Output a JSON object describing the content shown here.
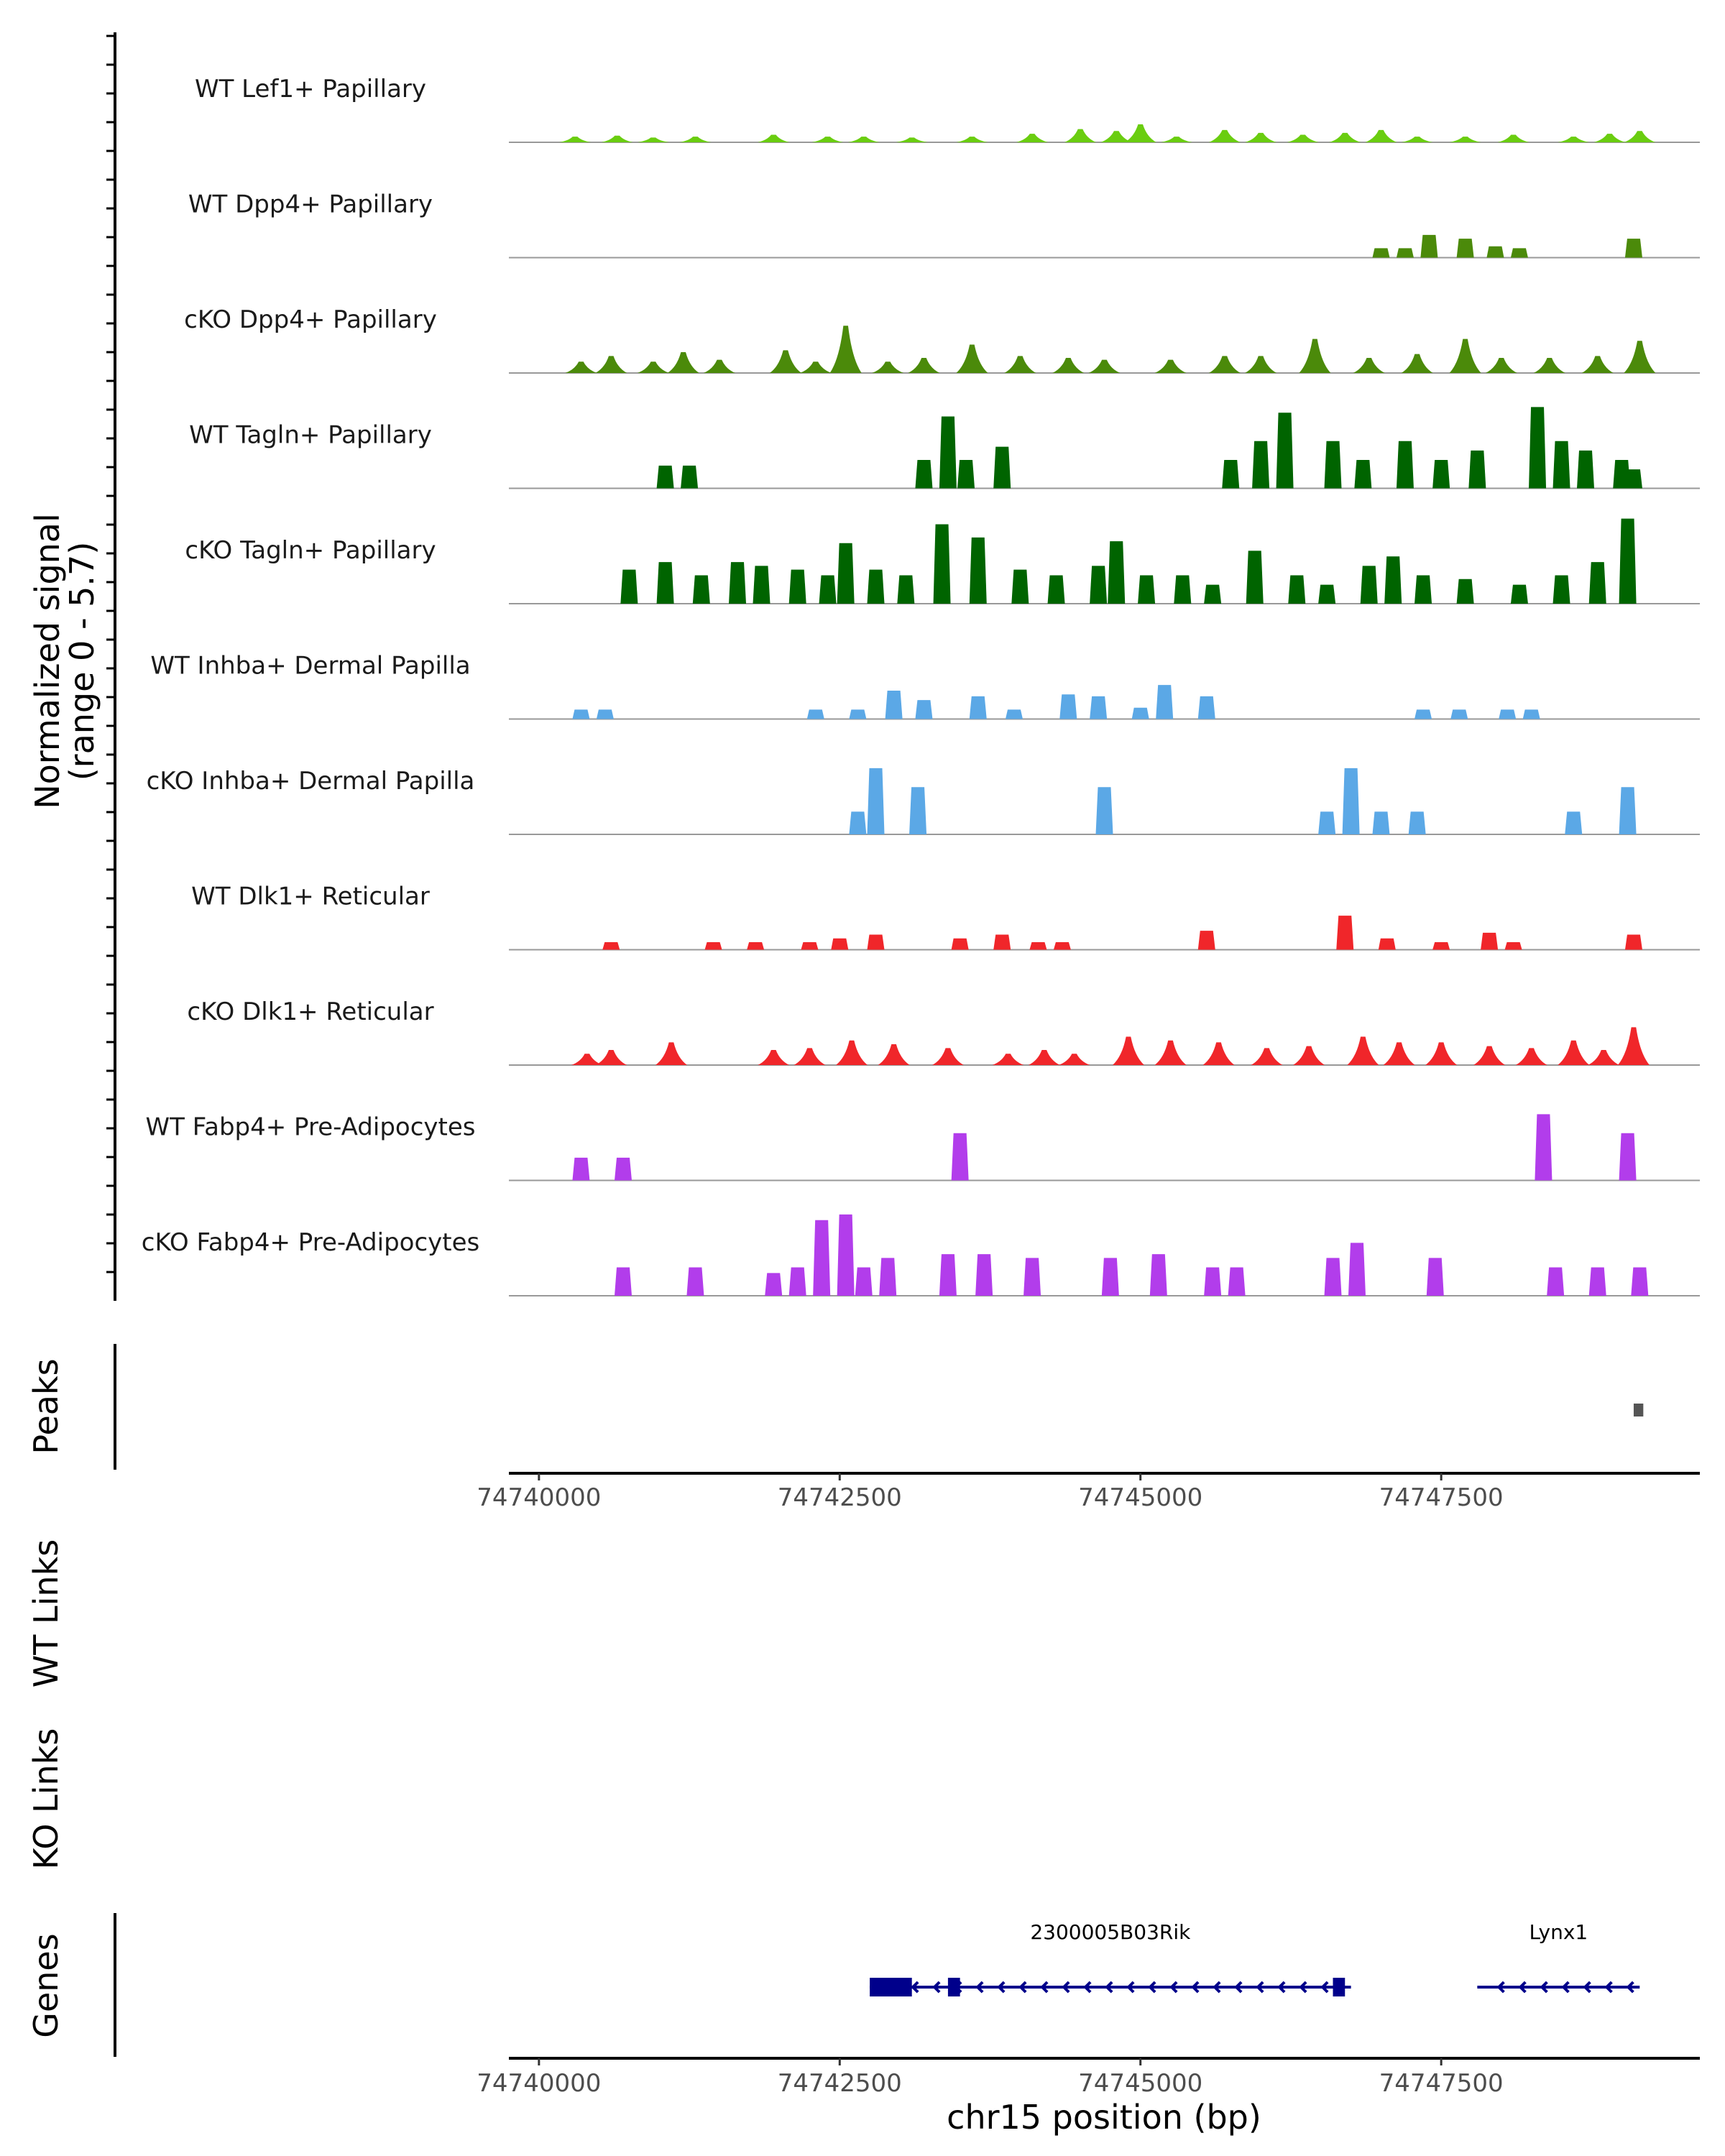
{
  "chart_data": {
    "type": "area",
    "title": "",
    "xlabel": "chr15 position (bp)",
    "ylabel": "Normalized signal",
    "ylabel_range": "(range 0 - 5.7)",
    "xlim": [
      74739750,
      74749650
    ],
    "ylim": [
      0,
      5.7
    ],
    "x_ticks": [
      74740000,
      74742500,
      74745000,
      74747500
    ],
    "x_tick_labels": [
      "74740000",
      "74742500",
      "74745000",
      "74747500"
    ],
    "tracks": [
      {
        "name": "WT Lef1+ Papillary",
        "color": "#6ACD10",
        "kind": "smooth",
        "points": [
          [
            74740300,
            0.3
          ],
          [
            74740650,
            0.35
          ],
          [
            74740950,
            0.25
          ],
          [
            74741300,
            0.3
          ],
          [
            74741950,
            0.4
          ],
          [
            74742400,
            0.3
          ],
          [
            74742700,
            0.3
          ],
          [
            74743100,
            0.25
          ],
          [
            74743600,
            0.3
          ],
          [
            74744100,
            0.45
          ],
          [
            74744500,
            0.7
          ],
          [
            74744800,
            0.6
          ],
          [
            74745000,
            0.95
          ],
          [
            74745300,
            0.3
          ],
          [
            74745700,
            0.65
          ],
          [
            74746000,
            0.5
          ],
          [
            74746350,
            0.4
          ],
          [
            74746700,
            0.5
          ],
          [
            74747000,
            0.65
          ],
          [
            74747300,
            0.3
          ],
          [
            74747700,
            0.3
          ],
          [
            74748100,
            0.4
          ],
          [
            74748600,
            0.3
          ],
          [
            74748900,
            0.45
          ],
          [
            74749150,
            0.6
          ]
        ]
      },
      {
        "name": "WT Dpp4+ Papillary",
        "color": "#4B8A0A",
        "kind": "blocky",
        "points": [
          [
            74747000,
            0.5
          ],
          [
            74747200,
            0.5
          ],
          [
            74747400,
            1.2
          ],
          [
            74747700,
            1.0
          ],
          [
            74747950,
            0.6
          ],
          [
            74748150,
            0.5
          ],
          [
            74749100,
            1.0
          ]
        ]
      },
      {
        "name": "cKO Dpp4+ Papillary",
        "color": "#4B8A0A",
        "kind": "smooth",
        "points": [
          [
            74740350,
            0.6
          ],
          [
            74740600,
            0.9
          ],
          [
            74740950,
            0.6
          ],
          [
            74741200,
            1.1
          ],
          [
            74741500,
            0.7
          ],
          [
            74742050,
            1.2
          ],
          [
            74742300,
            0.6
          ],
          [
            74742550,
            2.5
          ],
          [
            74742900,
            0.6
          ],
          [
            74743200,
            0.8
          ],
          [
            74743600,
            1.5
          ],
          [
            74744000,
            0.9
          ],
          [
            74744400,
            0.8
          ],
          [
            74744700,
            0.7
          ],
          [
            74745250,
            0.7
          ],
          [
            74745700,
            0.9
          ],
          [
            74746000,
            0.9
          ],
          [
            74746450,
            1.8
          ],
          [
            74746900,
            0.8
          ],
          [
            74747300,
            1.0
          ],
          [
            74747700,
            1.8
          ],
          [
            74748000,
            0.8
          ],
          [
            74748400,
            0.8
          ],
          [
            74748800,
            0.9
          ],
          [
            74749150,
            1.7
          ]
        ]
      },
      {
        "name": "WT Tagln+ Papillary",
        "color": "#006400",
        "kind": "blocky",
        "points": [
          [
            74741050,
            1.2
          ],
          [
            74741250,
            1.2
          ],
          [
            74743200,
            1.5
          ],
          [
            74743400,
            3.8
          ],
          [
            74743550,
            1.5
          ],
          [
            74743850,
            2.2
          ],
          [
            74745750,
            1.5
          ],
          [
            74746000,
            2.5
          ],
          [
            74746200,
            4.0
          ],
          [
            74746600,
            2.5
          ],
          [
            74746850,
            1.5
          ],
          [
            74747200,
            2.5
          ],
          [
            74747500,
            1.5
          ],
          [
            74747800,
            2.0
          ],
          [
            74748300,
            4.3
          ],
          [
            74748500,
            2.5
          ],
          [
            74748700,
            2.0
          ],
          [
            74749000,
            1.5
          ],
          [
            74749100,
            1.0
          ]
        ]
      },
      {
        "name": "cKO Tagln+ Papillary",
        "color": "#006400",
        "kind": "blocky",
        "points": [
          [
            74740750,
            1.8
          ],
          [
            74741050,
            2.2
          ],
          [
            74741350,
            1.5
          ],
          [
            74741650,
            2.2
          ],
          [
            74741850,
            2.0
          ],
          [
            74742150,
            1.8
          ],
          [
            74742400,
            1.5
          ],
          [
            74742550,
            3.2
          ],
          [
            74742800,
            1.8
          ],
          [
            74743050,
            1.5
          ],
          [
            74743350,
            4.2
          ],
          [
            74743650,
            3.5
          ],
          [
            74744000,
            1.8
          ],
          [
            74744300,
            1.5
          ],
          [
            74744650,
            2.0
          ],
          [
            74744800,
            3.3
          ],
          [
            74745050,
            1.5
          ],
          [
            74745350,
            1.5
          ],
          [
            74745600,
            1.0
          ],
          [
            74745950,
            2.8
          ],
          [
            74746300,
            1.5
          ],
          [
            74746550,
            1.0
          ],
          [
            74746900,
            2.0
          ],
          [
            74747100,
            2.5
          ],
          [
            74747350,
            1.5
          ],
          [
            74747700,
            1.3
          ],
          [
            74748150,
            1.0
          ],
          [
            74748500,
            1.5
          ],
          [
            74748800,
            2.2
          ],
          [
            74749050,
            4.5
          ]
        ]
      },
      {
        "name": "WT Inhba+ Dermal Papilla",
        "color": "#5BA8E6",
        "kind": "blocky",
        "points": [
          [
            74740350,
            0.5
          ],
          [
            74740550,
            0.5
          ],
          [
            74742300,
            0.5
          ],
          [
            74742650,
            0.5
          ],
          [
            74742950,
            1.5
          ],
          [
            74743200,
            1.0
          ],
          [
            74743650,
            1.2
          ],
          [
            74743950,
            0.5
          ],
          [
            74744400,
            1.3
          ],
          [
            74744650,
            1.2
          ],
          [
            74745000,
            0.6
          ],
          [
            74745200,
            1.8
          ],
          [
            74745550,
            1.2
          ],
          [
            74747350,
            0.5
          ],
          [
            74747650,
            0.5
          ],
          [
            74748050,
            0.5
          ],
          [
            74748250,
            0.5
          ]
        ]
      },
      {
        "name": "cKO Inhba+ Dermal Papilla",
        "color": "#5BA8E6",
        "kind": "blocky",
        "points": [
          [
            74742650,
            1.2
          ],
          [
            74742800,
            3.5
          ],
          [
            74743150,
            2.5
          ],
          [
            74744700,
            2.5
          ],
          [
            74746550,
            1.2
          ],
          [
            74746750,
            3.5
          ],
          [
            74747000,
            1.2
          ],
          [
            74747300,
            1.2
          ],
          [
            74748600,
            1.2
          ],
          [
            74749050,
            2.5
          ]
        ]
      },
      {
        "name": "WT Dlk1+ Reticular",
        "color": "#F0262A",
        "kind": "blocky",
        "points": [
          [
            74740600,
            0.4
          ],
          [
            74741450,
            0.4
          ],
          [
            74741800,
            0.4
          ],
          [
            74742250,
            0.4
          ],
          [
            74742500,
            0.6
          ],
          [
            74742800,
            0.8
          ],
          [
            74743500,
            0.6
          ],
          [
            74743850,
            0.8
          ],
          [
            74744150,
            0.4
          ],
          [
            74744350,
            0.4
          ],
          [
            74745550,
            1.0
          ],
          [
            74746700,
            1.8
          ],
          [
            74747050,
            0.6
          ],
          [
            74747500,
            0.4
          ],
          [
            74747900,
            0.9
          ],
          [
            74748100,
            0.4
          ],
          [
            74749100,
            0.8
          ]
        ]
      },
      {
        "name": "cKO Dlk1+ Reticular",
        "color": "#F0262A",
        "kind": "smooth",
        "points": [
          [
            74740400,
            0.6
          ],
          [
            74740600,
            0.8
          ],
          [
            74741100,
            1.2
          ],
          [
            74741950,
            0.8
          ],
          [
            74742250,
            0.9
          ],
          [
            74742600,
            1.3
          ],
          [
            74742950,
            1.1
          ],
          [
            74743400,
            0.9
          ],
          [
            74743900,
            0.6
          ],
          [
            74744200,
            0.8
          ],
          [
            74744450,
            0.6
          ],
          [
            74744900,
            1.5
          ],
          [
            74745250,
            1.3
          ],
          [
            74745650,
            1.2
          ],
          [
            74746050,
            0.9
          ],
          [
            74746400,
            1.0
          ],
          [
            74746850,
            1.5
          ],
          [
            74747150,
            1.2
          ],
          [
            74747500,
            1.2
          ],
          [
            74747900,
            1.0
          ],
          [
            74748250,
            0.9
          ],
          [
            74748600,
            1.3
          ],
          [
            74748850,
            0.8
          ],
          [
            74749100,
            2.0
          ]
        ]
      },
      {
        "name": "WT Fabp4+ Pre-Adipocytes",
        "color": "#B23DEB",
        "kind": "blocky",
        "points": [
          [
            74740350,
            1.2
          ],
          [
            74740700,
            1.2
          ],
          [
            74743500,
            2.5
          ],
          [
            74748350,
            3.5
          ],
          [
            74749050,
            2.5
          ]
        ]
      },
      {
        "name": "cKO Fabp4+ Pre-Adipocytes",
        "color": "#B23DEB",
        "kind": "blocky",
        "points": [
          [
            74740700,
            1.5
          ],
          [
            74741300,
            1.5
          ],
          [
            74741950,
            1.2
          ],
          [
            74742150,
            1.5
          ],
          [
            74742350,
            4.0
          ],
          [
            74742550,
            4.3
          ],
          [
            74742700,
            1.5
          ],
          [
            74742900,
            2.0
          ],
          [
            74743400,
            2.2
          ],
          [
            74743700,
            2.2
          ],
          [
            74744100,
            2.0
          ],
          [
            74744750,
            2.0
          ],
          [
            74745150,
            2.2
          ],
          [
            74745600,
            1.5
          ],
          [
            74745800,
            1.5
          ],
          [
            74746600,
            2.0
          ],
          [
            74746800,
            2.8
          ],
          [
            74747450,
            2.0
          ],
          [
            74748450,
            1.5
          ],
          [
            74748800,
            1.5
          ],
          [
            74749150,
            1.5
          ]
        ]
      }
    ],
    "peaks_label": "Peaks",
    "peaks": [
      [
        74749100,
        74749180
      ]
    ],
    "wt_links_label": "WT Links",
    "ko_links_label": "KO Links",
    "genes_label": "Genes",
    "genes": [
      {
        "name": "2300005B03Rik",
        "start": 74742750,
        "end": 74746750,
        "strand": "-",
        "exons": [
          [
            74742750,
            74743100
          ],
          [
            74743400,
            74743500
          ],
          [
            74746600,
            74746700
          ]
        ]
      },
      {
        "name": "Lynx1",
        "start": 74747800,
        "end": 74749150,
        "strand": "-",
        "exons": []
      }
    ],
    "peak_color": "#555555",
    "gene_color": "#00008B",
    "baseline_color": "#999999"
  }
}
